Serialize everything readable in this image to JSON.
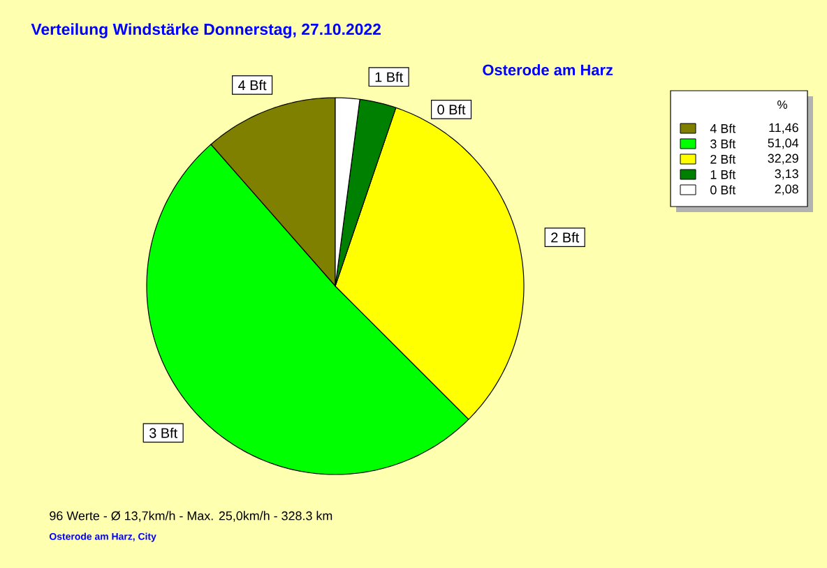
{
  "chart_data": {
    "type": "pie",
    "title": "Verteilung Windstärke  Donnerstag, 27.10.2022",
    "subtitle": "Osterode am Harz",
    "legend_title": "%",
    "legend": "top right",
    "categories": [
      "4 Bft",
      "3 Bft",
      "2 Bft",
      "1 Bft",
      "0 Bft"
    ],
    "values": [
      11.46,
      51.04,
      32.29,
      3.13,
      2.08
    ],
    "value_labels": [
      "11,46",
      "51,04",
      "32,29",
      "3,13",
      "2,08"
    ],
    "colors": [
      "#808000",
      "#00ff00",
      "#ffff00",
      "#008000",
      "#ffffff"
    ],
    "annotations": [
      "96 Werte  -  Ø 13,7km/h  -  Max. 25,0km/h  -  328.3 km",
      "Osterode am Harz, City"
    ]
  }
}
